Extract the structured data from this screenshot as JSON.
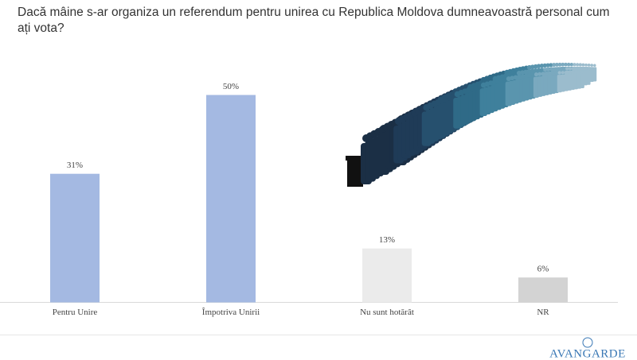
{
  "chart_data": {
    "type": "bar",
    "title": "Dacă mâine s-ar organiza un referendum pentru unirea cu Republica Moldova dumneavoastră personal cum ați vota?",
    "categories": [
      "Pentru Unire",
      "Împotriva Unirii",
      "Nu sunt hotărât",
      "NR"
    ],
    "values": [
      31,
      50,
      13,
      6
    ],
    "value_labels": [
      "31%",
      "50%",
      "13%",
      "6%"
    ],
    "colors": [
      "#a4b9e2",
      "#a4b9e2",
      "#ebebeb",
      "#d3d3d3"
    ]
  },
  "logo": "AVANGARDE"
}
